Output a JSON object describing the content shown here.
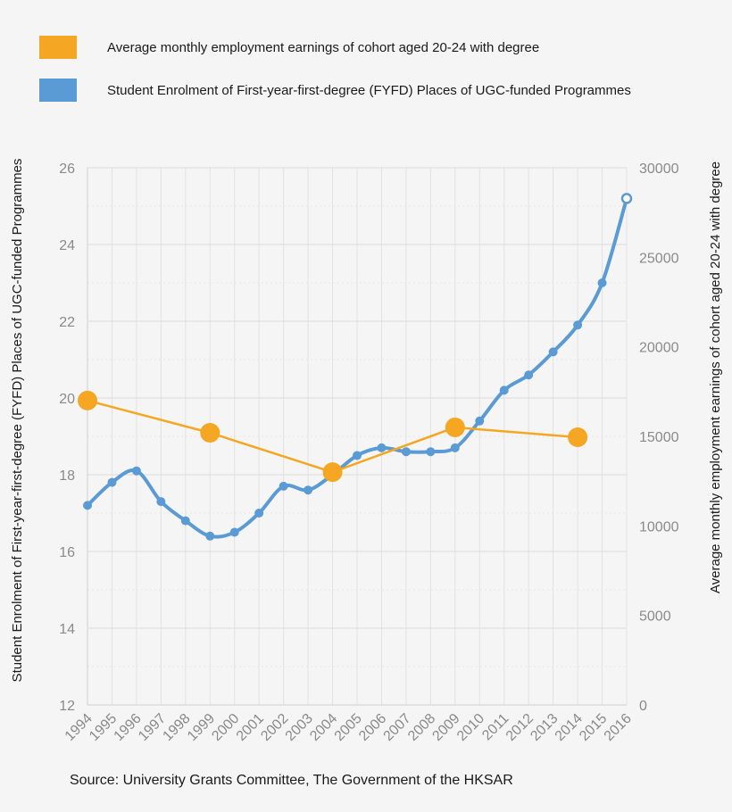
{
  "legend": {
    "items": [
      {
        "label": "Average monthly employment earnings of cohort aged 20-24 with degree",
        "color": "#f5a623"
      },
      {
        "label": "Student Enrolment of First-year-first-degree (FYFD) Places of UGC-funded Programmes",
        "color": "#5b9bd5"
      }
    ]
  },
  "source": "Source: University Grants Committee, The Government of the HKSAR",
  "chart_data": {
    "type": "line",
    "categories": [
      "1994",
      "1995",
      "1996",
      "1997",
      "1998",
      "1999",
      "2000",
      "2001",
      "2002",
      "2003",
      "2004",
      "2005",
      "2006",
      "2007",
      "2008",
      "2009",
      "2010",
      "2011",
      "2012",
      "2013",
      "2014",
      "2015",
      "2016"
    ],
    "left_axis": {
      "label": "Student Enrolment of First-year-first-degree (FYFD) Places of UGC-funded Programmes",
      "range": [
        12,
        26
      ],
      "ticks": [
        "12",
        "14",
        "16",
        "18",
        "20",
        "22",
        "24",
        "26"
      ]
    },
    "right_axis": {
      "label": "Average monthly employment earnings of cohort aged 20-24 with degree",
      "range": [
        0,
        30000
      ],
      "ticks": [
        "0",
        "5000",
        "10000",
        "15000",
        "20000",
        "25000",
        "30000"
      ]
    },
    "series": [
      {
        "name": "Student Enrolment of First-year-first-degree (FYFD) Places of UGC-funded Programmes",
        "axis": "left",
        "color": "#5b9bd5",
        "x": [
          "1994",
          "1995",
          "1996",
          "1997",
          "1998",
          "1999",
          "2000",
          "2001",
          "2002",
          "2003",
          "2004",
          "2005",
          "2006",
          "2007",
          "2008",
          "2009",
          "2010",
          "2011",
          "2012",
          "2013",
          "2014",
          "2015",
          "2016"
        ],
        "values": [
          17.2,
          17.8,
          18.1,
          17.3,
          16.8,
          16.4,
          16.5,
          17.0,
          17.7,
          17.6,
          18.0,
          18.5,
          18.7,
          18.6,
          18.6,
          18.7,
          19.4,
          20.2,
          20.6,
          21.2,
          21.9,
          23.0,
          25.2
        ]
      },
      {
        "name": "Average monthly employment earnings of cohort aged 20-24 with degree",
        "axis": "right",
        "color": "#f5a623",
        "x": [
          "1994",
          "1999",
          "2004",
          "2009",
          "2014"
        ],
        "values": [
          17000,
          15200,
          13000,
          15500,
          14950
        ]
      }
    ],
    "grid": true
  }
}
